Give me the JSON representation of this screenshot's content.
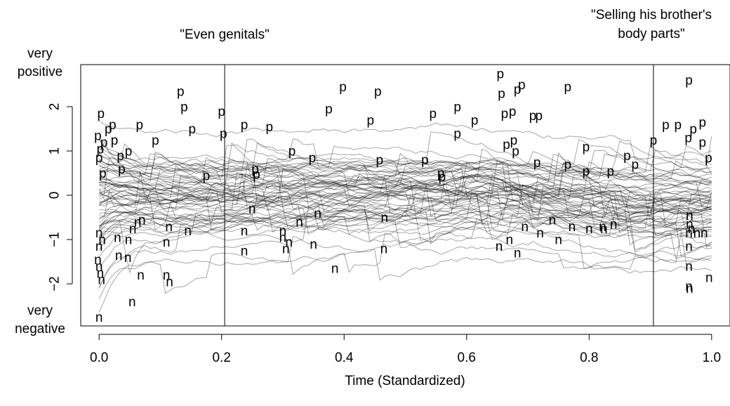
{
  "chart_data": {
    "type": "line",
    "title": "",
    "xlabel": "Time (Standardized)",
    "ylabel": "",
    "xlim": [
      -0.03,
      1.03
    ],
    "ylim": [
      -2.95,
      2.95
    ],
    "x_ticks": [
      0.0,
      0.2,
      0.4,
      0.6,
      0.8,
      1.0
    ],
    "x_tick_labels": [
      "0.0",
      "0.2",
      "0.4",
      "0.6",
      "0.8",
      "1.0"
    ],
    "y_ticks": [
      -2,
      -1,
      0,
      1,
      2
    ],
    "y_tick_labels": [
      "−2",
      "−1",
      "0",
      "1",
      "2"
    ],
    "y_end_labels": {
      "top": [
        "very",
        "positive"
      ],
      "bottom": [
        "very",
        "negative"
      ]
    },
    "annotations": [
      {
        "x": 0.205,
        "label": [
          "\"Even genitals\""
        ]
      },
      {
        "x": 0.905,
        "label": [
          "\"Selling his brother's",
          "body parts\""
        ]
      }
    ],
    "line_color": "#000000",
    "line_alpha": 0.35,
    "grid": false,
    "n_series": 70,
    "series_summary": {
      "description_points_x": [
        0,
        0.1,
        0.2,
        0.3,
        0.4,
        0.5,
        0.6,
        0.7,
        0.8,
        0.9,
        1.0
      ],
      "mean_y": [
        0.1,
        -0.05,
        0.05,
        0.15,
        0.15,
        0.1,
        0.2,
        -0.1,
        -0.25,
        -0.2,
        -0.1
      ]
    },
    "marker_labels": {
      "positive_symbol": "p",
      "negative_symbol": "n",
      "points": [
        {
          "s": "p",
          "x": 0.003,
          "y": 1.85
        },
        {
          "s": "p",
          "x": -0.002,
          "y": 1.35
        },
        {
          "s": "p",
          "x": 0.008,
          "y": 1.2
        },
        {
          "s": "p",
          "x": 0.015,
          "y": 1.5
        },
        {
          "s": "p",
          "x": 0.022,
          "y": 1.6
        },
        {
          "s": "p",
          "x": 0.025,
          "y": 1.25
        },
        {
          "s": "p",
          "x": 0.002,
          "y": 1.05
        },
        {
          "s": "p",
          "x": 0.0,
          "y": 0.85
        },
        {
          "s": "p",
          "x": 0.006,
          "y": 0.5
        },
        {
          "s": "p",
          "x": 0.035,
          "y": 0.9
        },
        {
          "s": "p",
          "x": 0.048,
          "y": 1.0
        },
        {
          "s": "p",
          "x": 0.037,
          "y": 0.6
        },
        {
          "s": "p",
          "x": 0.066,
          "y": 1.6
        },
        {
          "s": "p",
          "x": 0.092,
          "y": 1.25
        },
        {
          "s": "p",
          "x": 0.133,
          "y": 2.35
        },
        {
          "s": "p",
          "x": 0.139,
          "y": 2.0
        },
        {
          "s": "p",
          "x": 0.152,
          "y": 1.5
        },
        {
          "s": "p",
          "x": 0.175,
          "y": 0.45
        },
        {
          "s": "p",
          "x": 0.2,
          "y": 1.9
        },
        {
          "s": "p",
          "x": 0.203,
          "y": 1.4
        },
        {
          "s": "p",
          "x": 0.237,
          "y": 1.6
        },
        {
          "s": "p",
          "x": 0.255,
          "y": 0.6
        },
        {
          "s": "p",
          "x": 0.257,
          "y": 0.48
        },
        {
          "s": "p",
          "x": 0.278,
          "y": 1.55
        },
        {
          "s": "p",
          "x": 0.315,
          "y": 1.0
        },
        {
          "s": "p",
          "x": 0.348,
          "y": 0.85
        },
        {
          "s": "p",
          "x": 0.375,
          "y": 1.95
        },
        {
          "s": "p",
          "x": 0.398,
          "y": 2.45
        },
        {
          "s": "p",
          "x": 0.443,
          "y": 1.7
        },
        {
          "s": "p",
          "x": 0.455,
          "y": 2.35
        },
        {
          "s": "p",
          "x": 0.458,
          "y": 0.8
        },
        {
          "s": "p",
          "x": 0.532,
          "y": 0.8
        },
        {
          "s": "p",
          "x": 0.545,
          "y": 1.85
        },
        {
          "s": "p",
          "x": 0.558,
          "y": 0.5
        },
        {
          "s": "p",
          "x": 0.56,
          "y": 0.42
        },
        {
          "s": "p",
          "x": 0.585,
          "y": 2.0
        },
        {
          "s": "p",
          "x": 0.585,
          "y": 1.4
        },
        {
          "s": "p",
          "x": 0.613,
          "y": 1.7
        },
        {
          "s": "p",
          "x": 0.655,
          "y": 2.75
        },
        {
          "s": "p",
          "x": 0.657,
          "y": 2.3
        },
        {
          "s": "p",
          "x": 0.662,
          "y": 1.85
        },
        {
          "s": "p",
          "x": 0.665,
          "y": 1.15
        },
        {
          "s": "p",
          "x": 0.675,
          "y": 1.9
        },
        {
          "s": "p",
          "x": 0.677,
          "y": 1.25
        },
        {
          "s": "p",
          "x": 0.68,
          "y": 1.0
        },
        {
          "s": "p",
          "x": 0.683,
          "y": 2.4
        },
        {
          "s": "p",
          "x": 0.69,
          "y": 2.5
        },
        {
          "s": "p",
          "x": 0.708,
          "y": 1.8
        },
        {
          "s": "p",
          "x": 0.718,
          "y": 1.8
        },
        {
          "s": "p",
          "x": 0.715,
          "y": 0.75
        },
        {
          "s": "p",
          "x": 0.765,
          "y": 2.45
        },
        {
          "s": "p",
          "x": 0.765,
          "y": 0.7
        },
        {
          "s": "p",
          "x": 0.795,
          "y": 1.1
        },
        {
          "s": "p",
          "x": 0.795,
          "y": 0.55
        },
        {
          "s": "p",
          "x": 0.835,
          "y": 0.55
        },
        {
          "s": "p",
          "x": 0.862,
          "y": 0.9
        },
        {
          "s": "p",
          "x": 0.875,
          "y": 0.7
        },
        {
          "s": "p",
          "x": 0.905,
          "y": 1.25
        },
        {
          "s": "p",
          "x": 0.925,
          "y": 1.6
        },
        {
          "s": "p",
          "x": 0.945,
          "y": 1.6
        },
        {
          "s": "p",
          "x": 0.963,
          "y": 2.6
        },
        {
          "s": "p",
          "x": 0.962,
          "y": 1.3
        },
        {
          "s": "p",
          "x": 0.97,
          "y": 1.5
        },
        {
          "s": "p",
          "x": 0.985,
          "y": 1.65
        },
        {
          "s": "p",
          "x": 0.985,
          "y": 1.2
        },
        {
          "s": "p",
          "x": 0.995,
          "y": 0.85
        },
        {
          "s": "n",
          "x": 0.0,
          "y": -0.85
        },
        {
          "s": "n",
          "x": 0.005,
          "y": -1.0
        },
        {
          "s": "n",
          "x": 0.0,
          "y": -1.15
        },
        {
          "s": "n",
          "x": -0.002,
          "y": -1.45
        },
        {
          "s": "n",
          "x": 0.0,
          "y": -1.6
        },
        {
          "s": "n",
          "x": 0.002,
          "y": -1.75
        },
        {
          "s": "n",
          "x": 0.004,
          "y": -1.9
        },
        {
          "s": "n",
          "x": 0.0,
          "y": -2.75
        },
        {
          "s": "n",
          "x": 0.03,
          "y": -0.95
        },
        {
          "s": "n",
          "x": 0.032,
          "y": -1.35
        },
        {
          "s": "n",
          "x": 0.048,
          "y": -1.0
        },
        {
          "s": "n",
          "x": 0.047,
          "y": -1.4
        },
        {
          "s": "n",
          "x": 0.055,
          "y": -0.75
        },
        {
          "s": "n",
          "x": 0.063,
          "y": -0.6
        },
        {
          "s": "n",
          "x": 0.07,
          "y": -0.55
        },
        {
          "s": "n",
          "x": 0.068,
          "y": -1.8
        },
        {
          "s": "n",
          "x": 0.054,
          "y": -2.4
        },
        {
          "s": "n",
          "x": 0.11,
          "y": -1.05
        },
        {
          "s": "n",
          "x": 0.114,
          "y": -0.7
        },
        {
          "s": "n",
          "x": 0.11,
          "y": -1.8
        },
        {
          "s": "n",
          "x": 0.115,
          "y": -1.95
        },
        {
          "s": "n",
          "x": 0.145,
          "y": -0.8
        },
        {
          "s": "n",
          "x": 0.25,
          "y": -0.3
        },
        {
          "s": "n",
          "x": 0.237,
          "y": -0.8
        },
        {
          "s": "n",
          "x": 0.237,
          "y": -1.25
        },
        {
          "s": "n",
          "x": 0.3,
          "y": -0.8
        },
        {
          "s": "n",
          "x": 0.3,
          "y": -0.95
        },
        {
          "s": "n",
          "x": 0.31,
          "y": -1.05
        },
        {
          "s": "n",
          "x": 0.305,
          "y": -1.2
        },
        {
          "s": "n",
          "x": 0.327,
          "y": -0.6
        },
        {
          "s": "n",
          "x": 0.35,
          "y": -1.1
        },
        {
          "s": "n",
          "x": 0.357,
          "y": -0.4
        },
        {
          "s": "n",
          "x": 0.385,
          "y": -1.65
        },
        {
          "s": "n",
          "x": 0.466,
          "y": -0.5
        },
        {
          "s": "n",
          "x": 0.465,
          "y": -1.2
        },
        {
          "s": "n",
          "x": 0.653,
          "y": -1.15
        },
        {
          "s": "n",
          "x": 0.67,
          "y": -1.0
        },
        {
          "s": "n",
          "x": 0.683,
          "y": -1.3
        },
        {
          "s": "n",
          "x": 0.695,
          "y": -0.7
        },
        {
          "s": "n",
          "x": 0.72,
          "y": -0.85
        },
        {
          "s": "n",
          "x": 0.74,
          "y": -0.55
        },
        {
          "s": "n",
          "x": 0.75,
          "y": -1.0
        },
        {
          "s": "n",
          "x": 0.772,
          "y": -0.7
        },
        {
          "s": "n",
          "x": 0.8,
          "y": -0.75
        },
        {
          "s": "n",
          "x": 0.822,
          "y": -0.7
        },
        {
          "s": "n",
          "x": 0.824,
          "y": -0.75
        },
        {
          "s": "n",
          "x": 0.84,
          "y": -0.65
        },
        {
          "s": "n",
          "x": 0.964,
          "y": -0.45
        },
        {
          "s": "n",
          "x": 0.964,
          "y": -0.65
        },
        {
          "s": "n",
          "x": 0.967,
          "y": -0.75
        },
        {
          "s": "n",
          "x": 0.963,
          "y": -0.85
        },
        {
          "s": "n",
          "x": 0.976,
          "y": -0.85
        },
        {
          "s": "n",
          "x": 0.988,
          "y": -0.85
        },
        {
          "s": "n",
          "x": 0.963,
          "y": -1.15
        },
        {
          "s": "n",
          "x": 0.963,
          "y": -1.6
        },
        {
          "s": "n",
          "x": 0.963,
          "y": -2.05
        },
        {
          "s": "n",
          "x": 0.964,
          "y": -2.1
        },
        {
          "s": "n",
          "x": 0.996,
          "y": -1.85
        }
      ]
    }
  }
}
